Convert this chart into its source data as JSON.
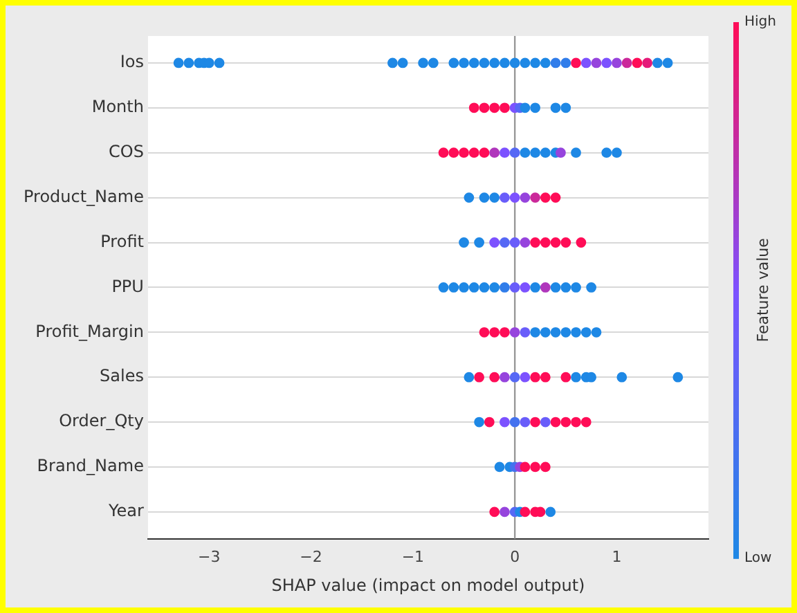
{
  "chart_data": {
    "type": "scatter",
    "orientation": "horizontal",
    "xlabel": "SHAP value (impact on model output)",
    "clabel": "Feature value",
    "legend": false,
    "grid": "y",
    "marker": "circle",
    "categories": [
      "Ios",
      "Month",
      "COS",
      "Product_Name",
      "Profit",
      "PPU",
      "Profit_Margin",
      "Sales",
      "Order_Qty",
      "Brand_Name",
      "Year"
    ],
    "xlim": [
      -3.6,
      1.9
    ],
    "xticks": [
      {
        "value": -3,
        "label": "−3"
      },
      {
        "value": -2,
        "label": "−2"
      },
      {
        "value": -1,
        "label": "−1"
      },
      0,
      1
    ],
    "clim": [
      0,
      1
    ],
    "cticks": [
      {
        "value": 0,
        "label": "Low"
      },
      {
        "value": 1,
        "label": "High"
      }
    ],
    "ref_lines": [
      {
        "axis": "x",
        "value": 0,
        "color": "#999999"
      }
    ],
    "series": [
      {
        "x": [
          "Ios",
          "Ios",
          "Ios",
          "Ios",
          "Ios",
          "Ios",
          "Ios",
          "Ios",
          "Ios",
          "Ios",
          "Ios",
          "Ios",
          "Ios",
          "Ios",
          "Ios",
          "Ios",
          "Ios",
          "Ios",
          "Ios",
          "Ios",
          "Ios",
          "Ios",
          "Ios",
          "Ios",
          "Ios",
          "Ios",
          "Ios",
          "Ios",
          "Ios",
          "Ios",
          "Ios",
          "Ios"
        ],
        "values": [
          -3.3,
          -3.2,
          -3.1,
          -3.05,
          -3.0,
          -2.9,
          -1.2,
          -1.1,
          -0.9,
          -0.8,
          -0.6,
          -0.5,
          -0.4,
          -0.3,
          -0.2,
          -0.1,
          0,
          0.1,
          0.2,
          0.3,
          0.4,
          0.5,
          0.6,
          0.7,
          0.8,
          0.9,
          1.0,
          1.1,
          1.2,
          1.3,
          1.4,
          1.5
        ],
        "cvalues": [
          0,
          0,
          0,
          0,
          0,
          0,
          0,
          0,
          0,
          0,
          0,
          0,
          0,
          0,
          0,
          0,
          0,
          0,
          0,
          0,
          0.1,
          0.1,
          1,
          0.5,
          0.6,
          0.5,
          0.6,
          0.8,
          1,
          0.9,
          0,
          0
        ],
        "colors": [
          "#1e88e5",
          "#1e88e5",
          "#1e88e5",
          "#1e88e5",
          "#1e88e5",
          "#1e88e5",
          "#1e88e5",
          "#1e88e5",
          "#1e88e5",
          "#1e88e5",
          "#1e88e5",
          "#1e88e5",
          "#1e88e5",
          "#1e88e5",
          "#1e88e5",
          "#1e88e5",
          "#1e88e5",
          "#1e88e5",
          "#1e88e5",
          "#1e88e5",
          "#317dea",
          "#317dea",
          "#ff0d57",
          "#7c52ff",
          "#9644dd",
          "#7c52ff",
          "#9644dd",
          "#cb299a",
          "#ff0d57",
          "#e51b79",
          "#1e88e5",
          "#1e88e5"
        ]
      },
      {
        "x": [
          "Month",
          "Month",
          "Month",
          "Month",
          "Month",
          "Month",
          "Month",
          "Month",
          "Month",
          "Month"
        ],
        "values": [
          -0.4,
          -0.3,
          -0.2,
          -0.1,
          0,
          0.05,
          0.1,
          0.2,
          0.4,
          0.5
        ],
        "cvalues": [
          1,
          1,
          1,
          1,
          0.5,
          0.3,
          0,
          0,
          0,
          0
        ],
        "colors": [
          "#ff0d57",
          "#ff0d57",
          "#ff0d57",
          "#ff0d57",
          "#7c52ff",
          "#5668f5",
          "#1e88e5",
          "#1e88e5",
          "#1e88e5",
          "#1e88e5"
        ]
      },
      {
        "x": [
          "COS",
          "COS",
          "COS",
          "COS",
          "COS",
          "COS",
          "COS",
          "COS",
          "COS",
          "COS",
          "COS",
          "COS",
          "COS",
          "COS",
          "COS",
          "COS"
        ],
        "values": [
          -0.7,
          -0.6,
          -0.5,
          -0.4,
          -0.3,
          -0.2,
          -0.1,
          0,
          0.1,
          0.2,
          0.3,
          0.4,
          0.45,
          0.6,
          0.9,
          1.0
        ],
        "cvalues": [
          1,
          1,
          1,
          1,
          1,
          0.7,
          0.5,
          0.3,
          0,
          0,
          0,
          0,
          0.6,
          0,
          0,
          0
        ],
        "colors": [
          "#ff0d57",
          "#ff0d57",
          "#ff0d57",
          "#ff0d57",
          "#ff0d57",
          "#b036bc",
          "#7c52ff",
          "#5668f5",
          "#1e88e5",
          "#1e88e5",
          "#1e88e5",
          "#1e88e5",
          "#9644dd",
          "#1e88e5",
          "#1e88e5",
          "#1e88e5"
        ]
      },
      {
        "x": [
          "Product_Name",
          "Product_Name",
          "Product_Name",
          "Product_Name",
          "Product_Name",
          "Product_Name",
          "Product_Name",
          "Product_Name",
          "Product_Name"
        ],
        "values": [
          -0.45,
          -0.3,
          -0.2,
          -0.1,
          0,
          0.1,
          0.2,
          0.3,
          0.4
        ],
        "cvalues": [
          0,
          0,
          0,
          0.4,
          0.5,
          0.6,
          0.8,
          1,
          1
        ],
        "colors": [
          "#1e88e5",
          "#1e88e5",
          "#1e88e5",
          "#695dfa",
          "#7c52ff",
          "#9644dd",
          "#cb299a",
          "#ff0d57",
          "#ff0d57"
        ]
      },
      {
        "x": [
          "Profit",
          "Profit",
          "Profit",
          "Profit",
          "Profit",
          "Profit",
          "Profit",
          "Profit",
          "Profit",
          "Profit",
          "Profit"
        ],
        "values": [
          -0.5,
          -0.35,
          -0.2,
          -0.1,
          0,
          0.1,
          0.2,
          0.3,
          0.4,
          0.5,
          0.65
        ],
        "cvalues": [
          0,
          0,
          0.5,
          0.3,
          0.4,
          0.6,
          1,
          1,
          1,
          1,
          1
        ],
        "colors": [
          "#1e88e5",
          "#1e88e5",
          "#7c52ff",
          "#5668f5",
          "#695dfa",
          "#9644dd",
          "#ff0d57",
          "#ff0d57",
          "#ff0d57",
          "#ff0d57",
          "#ff0d57"
        ]
      },
      {
        "x": [
          "PPU",
          "PPU",
          "PPU",
          "PPU",
          "PPU",
          "PPU",
          "PPU",
          "PPU",
          "PPU",
          "PPU",
          "PPU",
          "PPU",
          "PPU",
          "PPU",
          "PPU"
        ],
        "values": [
          -0.7,
          -0.6,
          -0.5,
          -0.4,
          -0.3,
          -0.2,
          -0.1,
          0,
          0.1,
          0.2,
          0.3,
          0.4,
          0.5,
          0.6,
          0.75
        ],
        "cvalues": [
          0,
          0,
          0,
          0,
          0,
          0,
          0.1,
          0.4,
          0.5,
          0,
          0.7,
          0,
          0,
          0,
          0
        ],
        "colors": [
          "#1e88e5",
          "#1e88e5",
          "#1e88e5",
          "#1e88e5",
          "#1e88e5",
          "#1e88e5",
          "#317dea",
          "#695dfa",
          "#7c52ff",
          "#1e88e5",
          "#b036bc",
          "#1e88e5",
          "#1e88e5",
          "#1e88e5",
          "#1e88e5"
        ]
      },
      {
        "x": [
          "Profit_Margin",
          "Profit_Margin",
          "Profit_Margin",
          "Profit_Margin",
          "Profit_Margin",
          "Profit_Margin",
          "Profit_Margin",
          "Profit_Margin",
          "Profit_Margin",
          "Profit_Margin",
          "Profit_Margin",
          "Profit_Margin"
        ],
        "values": [
          -0.3,
          -0.2,
          -0.1,
          0,
          0.1,
          0.2,
          0.3,
          0.4,
          0.5,
          0.6,
          0.7,
          0.8
        ],
        "cvalues": [
          1,
          1,
          1,
          0.6,
          0.4,
          0,
          0,
          0,
          0,
          0,
          0,
          0
        ],
        "colors": [
          "#ff0d57",
          "#ff0d57",
          "#ff0d57",
          "#9644dd",
          "#695dfa",
          "#1e88e5",
          "#1e88e5",
          "#1e88e5",
          "#1e88e5",
          "#1e88e5",
          "#1e88e5",
          "#1e88e5"
        ]
      },
      {
        "x": [
          "Sales",
          "Sales",
          "Sales",
          "Sales",
          "Sales",
          "Sales",
          "Sales",
          "Sales",
          "Sales",
          "Sales",
          "Sales",
          "Sales",
          "Sales",
          "Sales"
        ],
        "values": [
          -0.45,
          -0.35,
          -0.2,
          -0.1,
          0,
          0.1,
          0.2,
          0.3,
          0.5,
          0.6,
          0.7,
          0.75,
          1.05,
          1.6
        ],
        "cvalues": [
          0,
          1,
          1,
          0.6,
          0.3,
          0.5,
          1,
          1,
          1,
          0,
          0,
          0,
          0,
          0
        ],
        "colors": [
          "#1e88e5",
          "#ff0d57",
          "#ff0d57",
          "#9644dd",
          "#5668f5",
          "#7c52ff",
          "#ff0d57",
          "#ff0d57",
          "#ff0d57",
          "#1e88e5",
          "#1e88e5",
          "#1e88e5",
          "#1e88e5",
          "#1e88e5"
        ]
      },
      {
        "x": [
          "Order_Qty",
          "Order_Qty",
          "Order_Qty",
          "Order_Qty",
          "Order_Qty",
          "Order_Qty",
          "Order_Qty",
          "Order_Qty",
          "Order_Qty",
          "Order_Qty",
          "Order_Qty"
        ],
        "values": [
          -0.35,
          -0.25,
          -0.1,
          0,
          0.1,
          0.2,
          0.3,
          0.4,
          0.5,
          0.6,
          0.7
        ],
        "cvalues": [
          0,
          1,
          0.5,
          0.2,
          0.4,
          1,
          0.4,
          1,
          1,
          1,
          1
        ],
        "colors": [
          "#1e88e5",
          "#ff0d57",
          "#7c52ff",
          "#4472ef",
          "#695dfa",
          "#ff0d57",
          "#695dfa",
          "#ff0d57",
          "#ff0d57",
          "#ff0d57",
          "#ff0d57"
        ]
      },
      {
        "x": [
          "Brand_Name",
          "Brand_Name",
          "Brand_Name",
          "Brand_Name",
          "Brand_Name",
          "Brand_Name",
          "Brand_Name"
        ],
        "values": [
          -0.15,
          -0.05,
          0,
          0.05,
          0.1,
          0.2,
          0.3
        ],
        "cvalues": [
          0,
          0,
          0.2,
          0.6,
          1,
          1,
          1
        ],
        "colors": [
          "#1e88e5",
          "#1e88e5",
          "#4472ef",
          "#9644dd",
          "#ff0d57",
          "#ff0d57",
          "#ff0d57"
        ]
      },
      {
        "x": [
          "Year",
          "Year",
          "Year",
          "Year",
          "Year",
          "Year",
          "Year",
          "Year"
        ],
        "values": [
          -0.2,
          -0.1,
          0,
          0.05,
          0.1,
          0.2,
          0.25,
          0.35
        ],
        "cvalues": [
          1,
          0.6,
          0.3,
          0,
          1,
          1,
          1,
          0
        ],
        "colors": [
          "#ff0d57",
          "#9644dd",
          "#5668f5",
          "#1e88e5",
          "#ff0d57",
          "#ff0d57",
          "#ff0d57",
          "#1e88e5"
        ]
      }
    ]
  }
}
